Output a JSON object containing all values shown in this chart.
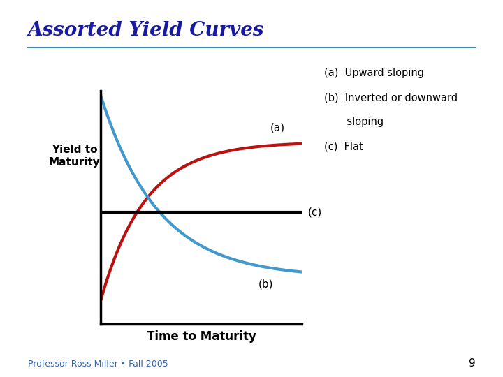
{
  "title": "Assorted Yield Curves",
  "title_color": "#1A1AA0",
  "title_fontsize": 20,
  "title_style": "italic",
  "title_font": "serif",
  "background_color": "#FFFFFF",
  "ylabel": "Yield to\nMaturity",
  "xlabel": "Time to Maturity",
  "xlabel_fontsize": 12,
  "ylabel_fontsize": 11,
  "line_a_color": "#BB1111",
  "line_b_color": "#4499CC",
  "line_c_color": "#000000",
  "line_width": 3.0,
  "label_a": "(a)",
  "label_b": "(b)",
  "label_c": "(c)",
  "hr_color": "#4488AA",
  "footer_text": "Professor Ross Miller • Fall 2005",
  "footer_fontsize": 9,
  "footer_color": "#3366AA",
  "page_number": "9",
  "legend_lines": [
    "(a)  Upward sloping",
    "(b)  Inverted or downward",
    "       sloping",
    "(c)  Flat"
  ]
}
